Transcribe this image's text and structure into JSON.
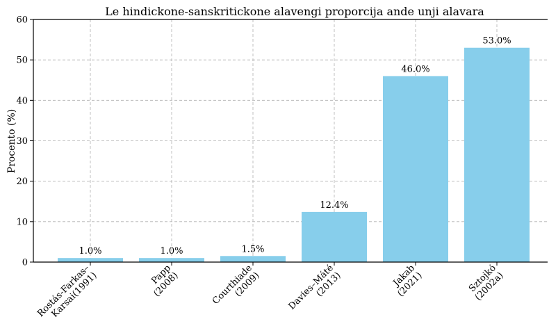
{
  "chart_data": {
    "type": "bar",
    "title": "Le hindickone-sanskritickone alavengi proporcija ande unji alavara",
    "ylabel": "Procento (%)",
    "xlabel": "",
    "ylim": [
      0,
      60
    ],
    "yticks": [
      0,
      10,
      20,
      30,
      40,
      50,
      60
    ],
    "grid": true,
    "bar_color": "#87CEEB",
    "categories": [
      [
        "Rostás-Farkas–",
        "Karsai(1991)"
      ],
      [
        "Papp",
        "(2008)"
      ],
      [
        "Courthiade",
        "(2009)"
      ],
      [
        "Davies–Máté",
        "(2013)"
      ],
      [
        "Jakab",
        "(2021)"
      ],
      [
        "Sztojkó",
        "(2002a)"
      ]
    ],
    "values": [
      1.0,
      1.0,
      1.5,
      12.4,
      46.0,
      53.0
    ],
    "data_labels": [
      "1.0%",
      "1.0%",
      "1.5%",
      "12.4%",
      "46.0%",
      "53.0%"
    ]
  }
}
